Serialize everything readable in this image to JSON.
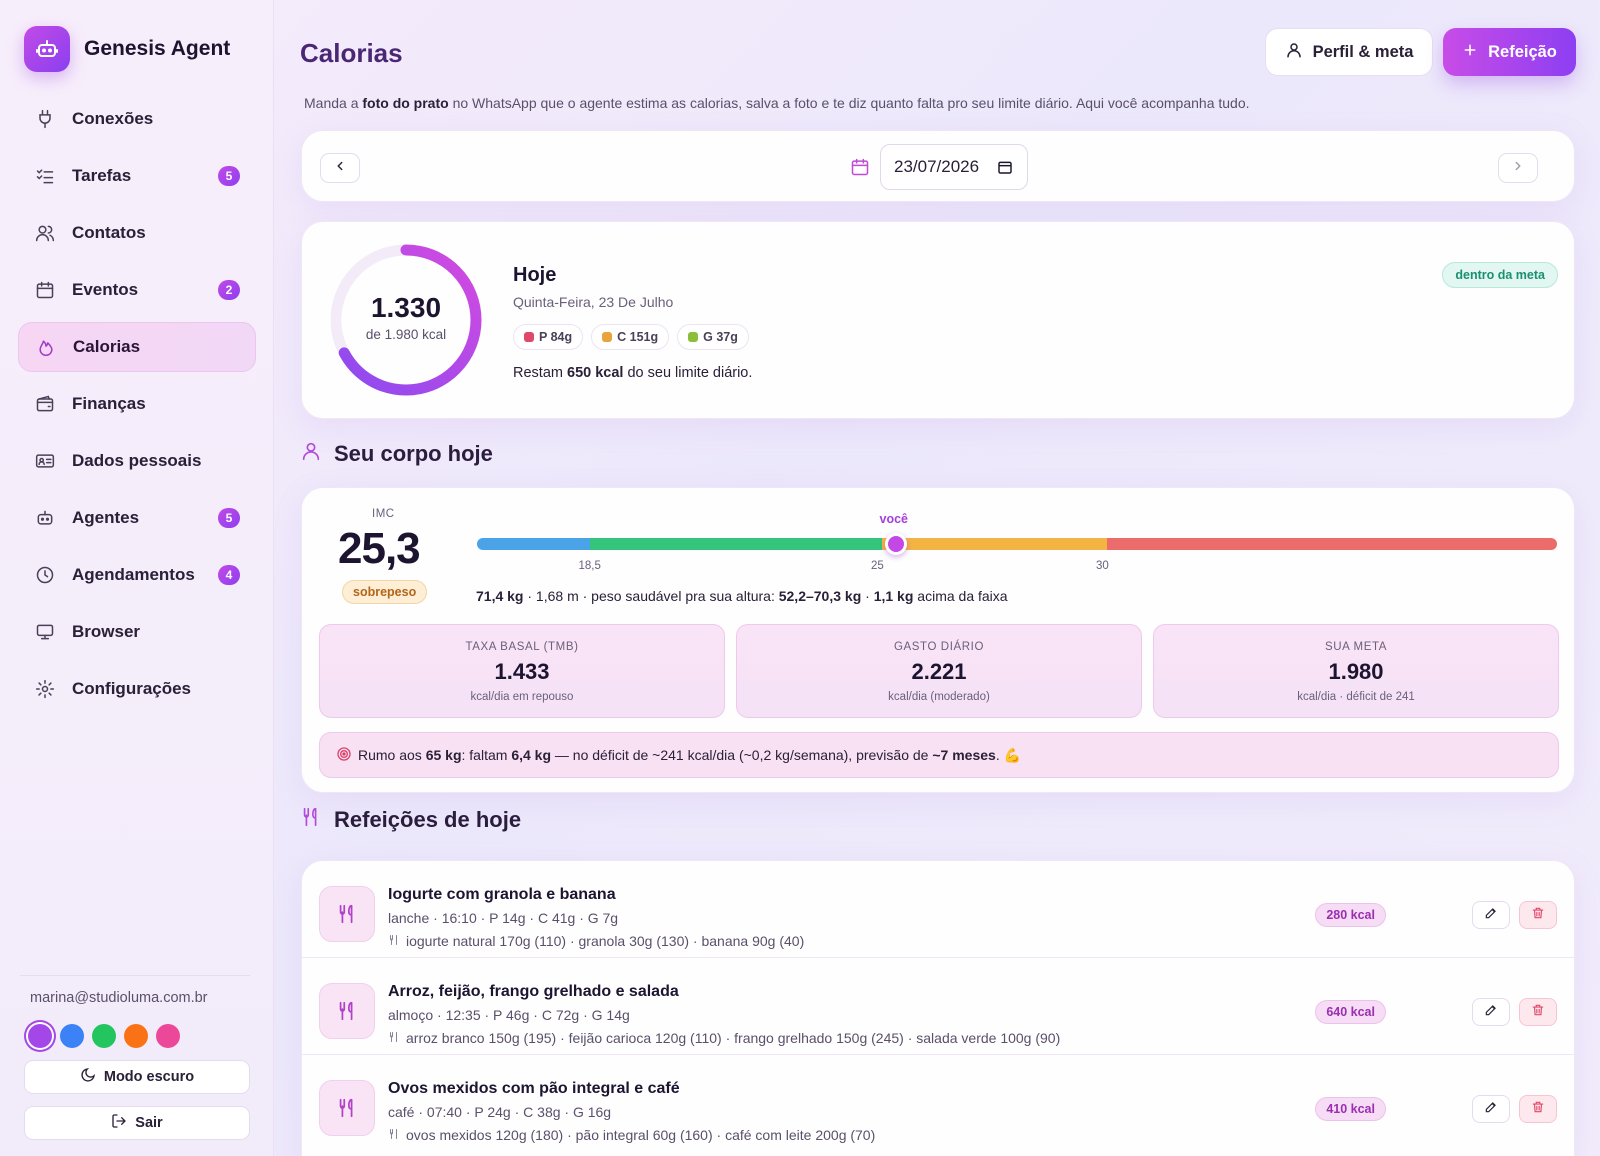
{
  "app": {
    "name": "Genesis Agent",
    "logo_icon": "robot-icon",
    "brand_color": "#a447e8"
  },
  "sidebar": {
    "items": [
      {
        "label": "Conexões",
        "icon": "plug-icon",
        "badge": null,
        "active": false
      },
      {
        "label": "Tarefas",
        "icon": "checklist-icon",
        "badge": "5",
        "active": false
      },
      {
        "label": "Contatos",
        "icon": "users-icon",
        "badge": null,
        "active": false
      },
      {
        "label": "Eventos",
        "icon": "calendar-icon",
        "badge": "2",
        "active": false
      },
      {
        "label": "Calorias",
        "icon": "flame-icon",
        "badge": null,
        "active": true
      },
      {
        "label": "Finanças",
        "icon": "wallet-icon",
        "badge": null,
        "active": false
      },
      {
        "label": "Dados pessoais",
        "icon": "id-card-icon",
        "badge": null,
        "active": false
      },
      {
        "label": "Agentes",
        "icon": "robot-icon",
        "badge": "5",
        "active": false
      },
      {
        "label": "Agendamentos",
        "icon": "clock-icon",
        "badge": "4",
        "active": false
      },
      {
        "label": "Browser",
        "icon": "monitor-icon",
        "badge": null,
        "active": false
      },
      {
        "label": "Configurações",
        "icon": "gear-icon",
        "badge": null,
        "active": false
      }
    ],
    "user_email": "marina@studioluma.com.br",
    "theme_colors": [
      "#a447e8",
      "#3b82f6",
      "#22c55e",
      "#f97316",
      "#ec4899"
    ],
    "selected_theme": 0,
    "dark_mode_label": "Modo escuro",
    "logout_label": "Sair"
  },
  "header": {
    "title": "Calorias",
    "profile_button": "Perfil & meta",
    "add_button": "Refeição",
    "subtitle_pre": "Manda a ",
    "subtitle_bold": "foto do prato",
    "subtitle_post": " no WhatsApp que o agente estima as calorias, salva a foto e te diz quanto falta pro seu limite diário. Aqui você acompanha tudo."
  },
  "date_picker": {
    "value": "23/07/2026"
  },
  "today": {
    "consumed": "1.330",
    "limit_text": "de 1.980 kcal",
    "progress": 0.672,
    "title": "Hoje",
    "date_text": "Quinta-Feira, 23 De Julho",
    "macros": [
      {
        "label": "P 84g",
        "color": "#e0486a"
      },
      {
        "label": "C 151g",
        "color": "#e8a33d"
      },
      {
        "label": "G 37g",
        "color": "#8bbf3a"
      }
    ],
    "remaining_pre": "Restam ",
    "remaining_bold": "650 kcal",
    "remaining_post": " do seu limite diário.",
    "status_badge": "dentro da meta"
  },
  "body": {
    "section_title": "Seu corpo hoje",
    "imc_label": "IMC",
    "imc_value": "25,3",
    "imc_numeric": 25.3,
    "imc_status": "sobrepeso",
    "scale_min": 16,
    "scale_max": 40,
    "marker_label": "você",
    "ticks": [
      {
        "label": "18,5",
        "value": 18.5
      },
      {
        "label": "25",
        "value": 25
      },
      {
        "label": "30",
        "value": 30
      }
    ],
    "stats_weight": "71,4 kg",
    "stats_mid": " · 1,68 m · peso saudável pra sua altura: ",
    "stats_range": "52,2–70,3 kg",
    "stats_sep": " · ",
    "stats_over": "1,1 kg",
    "stats_post": " acima da faixa",
    "boxes": [
      {
        "label": "TAXA BASAL (TMB)",
        "value": "1.433",
        "sub": "kcal/dia em repouso"
      },
      {
        "label": "GASTO DIÁRIO",
        "value": "2.221",
        "sub": "kcal/dia (moderado)"
      },
      {
        "label": "SUA META",
        "value": "1.980",
        "sub": "kcal/dia · déficit de 241"
      }
    ],
    "goal_note": {
      "t1": "Rumo aos ",
      "b1": "65 kg",
      "t2": ": faltam ",
      "b2": "6,4 kg",
      "t3": " — no déficit de ~241 kcal/dia (~0,2 kg/semana), previsão de ",
      "b3": "~7 meses",
      "t4": ". 💪"
    }
  },
  "meals": {
    "section_title": "Refeições de hoje",
    "items": [
      {
        "name": "Iogurte com granola e banana",
        "meta": "lanche · 16:10 · P 14g · C 41g · G 7g",
        "items": "iogurte natural 170g (110) · granola 30g (130) · banana 90g (40)",
        "kcal": "280 kcal"
      },
      {
        "name": "Arroz, feijão, frango grelhado e salada",
        "meta": "almoço · 12:35 · P 46g · C 72g · G 14g",
        "items": "arroz branco 150g (195) · feijão carioca 120g (110) · frango grelhado 150g (245) · salada verde 100g (90)",
        "kcal": "640 kcal"
      },
      {
        "name": "Ovos mexidos com pão integral e café",
        "meta": "café · 07:40 · P 24g · C 38g · G 16g",
        "items": "ovos mexidos 120g (180) · pão integral 60g (160) · café com leite 200g (70)",
        "kcal": "410 kcal"
      }
    ]
  }
}
